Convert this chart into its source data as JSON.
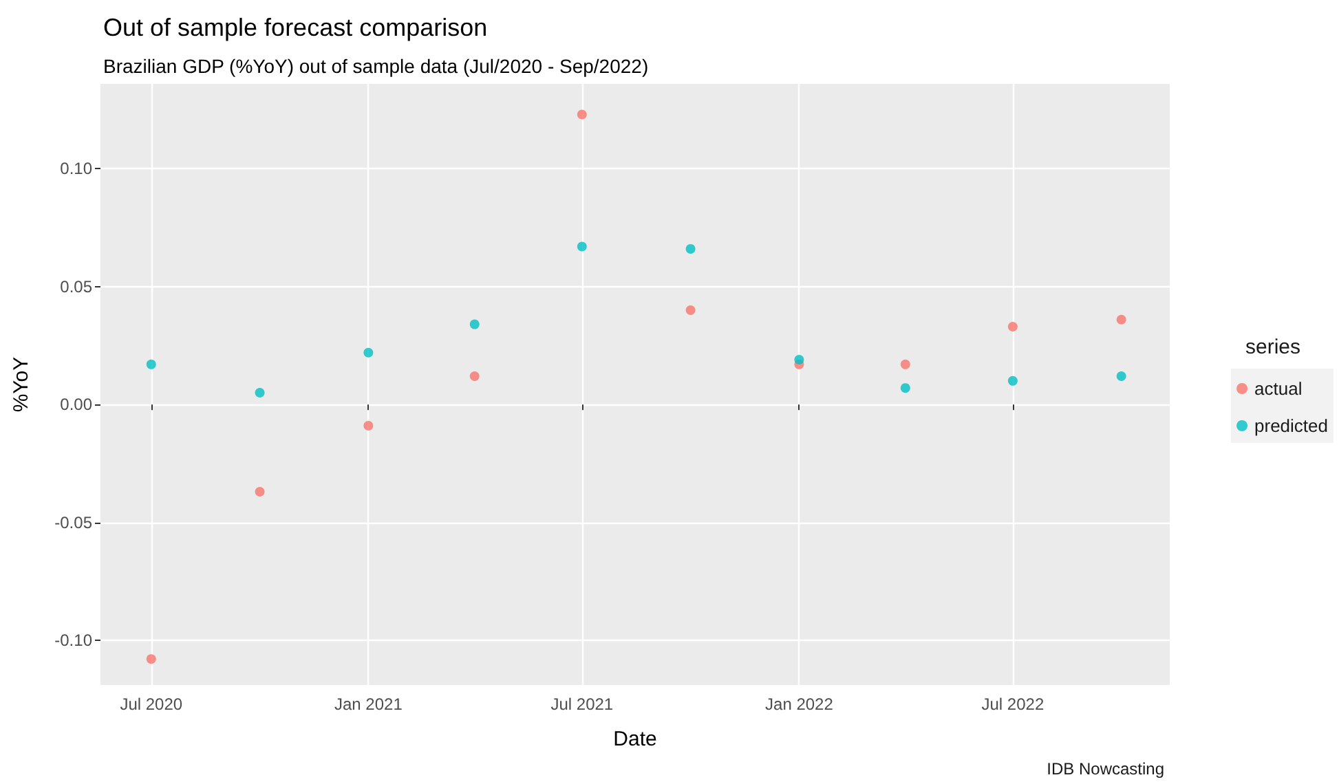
{
  "chart_data": {
    "type": "scatter",
    "title": "Out of sample forecast comparison",
    "subtitle": "Brazilian GDP (%YoY) out of sample data (Jul/2020 - Sep/2022)",
    "xlabel": "Date",
    "ylabel": "%YoY",
    "legend_title": "series",
    "x": [
      "2020-07-01",
      "2020-10-01",
      "2021-01-01",
      "2021-04-01",
      "2021-07-01",
      "2021-10-01",
      "2022-01-01",
      "2022-04-01",
      "2022-07-01",
      "2022-10-01"
    ],
    "series": [
      {
        "name": "actual",
        "color": "#f8766d",
        "values": [
          -0.108,
          -0.037,
          -0.009,
          0.012,
          0.123,
          0.04,
          0.017,
          0.017,
          0.033,
          0.036
        ]
      },
      {
        "name": "predicted",
        "color": "#00bfc4",
        "values": [
          0.017,
          0.005,
          0.022,
          0.034,
          0.067,
          0.066,
          0.019,
          0.007,
          0.01,
          0.012
        ]
      }
    ],
    "xlim": [
      "2020-05-19",
      "2022-11-11"
    ],
    "xticks": [
      {
        "value": "2020-07-01",
        "label": "Jul 2020"
      },
      {
        "value": "2021-01-01",
        "label": "Jan 2021"
      },
      {
        "value": "2021-07-01",
        "label": "Jul 2021"
      },
      {
        "value": "2022-01-01",
        "label": "Jan 2022"
      },
      {
        "value": "2022-07-01",
        "label": "Jul 2022"
      }
    ],
    "ylim": [
      -0.119,
      0.136
    ],
    "yticks": [
      {
        "value": -0.1,
        "label": "-0.10"
      },
      {
        "value": -0.05,
        "label": "-0.05"
      },
      {
        "value": 0,
        "label": "0.00"
      },
      {
        "value": 0.05,
        "label": "0.05"
      },
      {
        "value": 0.1,
        "label": "0.10"
      }
    ],
    "grid": true,
    "legend": "right",
    "marker": "circle",
    "annotations": [
      "IDB Nowcasting"
    ]
  }
}
